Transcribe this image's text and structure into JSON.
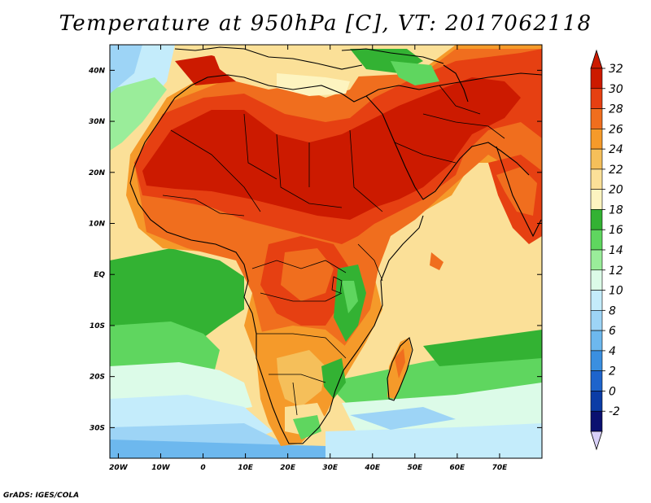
{
  "title": "Temperature at 950hPa [C], VT: 2017062118",
  "credit": "GrADS: IGES/COLA",
  "map": {
    "lat_labels": [
      "40N",
      "30N",
      "20N",
      "10N",
      "EQ",
      "10S",
      "20S",
      "30S"
    ],
    "lat_values": [
      40,
      30,
      20,
      10,
      0,
      -10,
      -20,
      -30
    ],
    "lon_labels": [
      "20W",
      "10W",
      "0",
      "10E",
      "20E",
      "30E",
      "40E",
      "50E",
      "60E",
      "70E"
    ],
    "lon_values": [
      -20,
      -10,
      0,
      10,
      20,
      30,
      40,
      50,
      60,
      70
    ],
    "lon_range": [
      -22,
      80
    ],
    "lat_range": [
      -36,
      45
    ]
  },
  "colorbar": {
    "levels": [
      "32",
      "30",
      "28",
      "26",
      "24",
      "22",
      "20",
      "18",
      "16",
      "14",
      "12",
      "10",
      "8",
      "6",
      "4",
      "2",
      "0",
      "-2"
    ],
    "colors": [
      "#cc1a00",
      "#e64012",
      "#f06e1e",
      "#f59a2a",
      "#f5bf5a",
      "#fbe098",
      "#fdf4c0",
      "#33b233",
      "#5fd65f",
      "#9aed9a",
      "#dcfbe8",
      "#c4ecfb",
      "#9dd4f6",
      "#6db8ee",
      "#3a8fe0",
      "#1e64cc",
      "#0b3ca6",
      "#0a1070"
    ],
    "top_arrow_color": "#cc1a00",
    "bottom_arrow_color": "#d8d0f8"
  }
}
